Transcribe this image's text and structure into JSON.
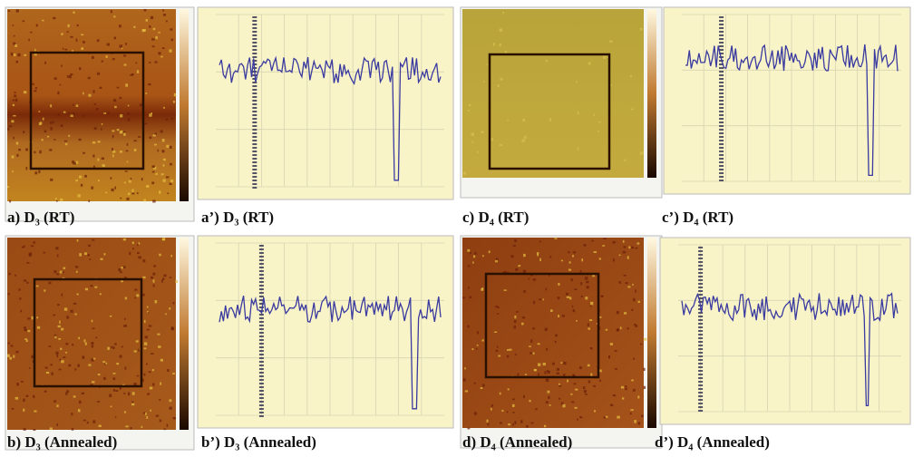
{
  "panels": [
    {
      "caption": "a) D₃ (RT)"
    },
    {
      "caption": "a’) D₃ (RT)"
    },
    {
      "caption": "c) D₄ (RT)"
    },
    {
      "caption": "c’) D₄ (RT)"
    },
    {
      "caption": "b) D₃ (Annealed)"
    },
    {
      "caption": "b’) D₃ (Annealed)"
    },
    {
      "caption": "d) D₄ (Annealed)"
    },
    {
      "caption": "d’) D₄ (Annealed)"
    }
  ]
}
